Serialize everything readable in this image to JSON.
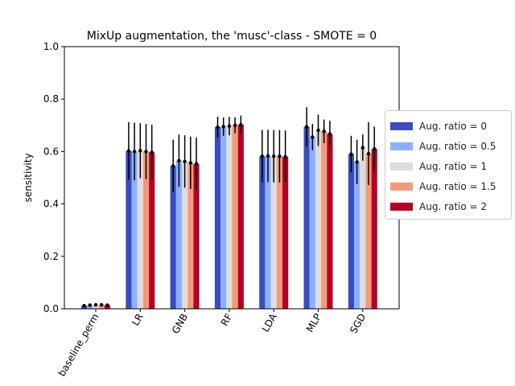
{
  "chart_data": {
    "type": "bar",
    "title": "MixUp augmentation, the 'musc'-class - SMOTE = 0",
    "xlabel": "",
    "ylabel": "sensitivity",
    "ylim": [
      0,
      1.0
    ],
    "yticks": [
      "0.0",
      "0.2",
      "0.4",
      "0.6",
      "0.8",
      "1.0"
    ],
    "categories": [
      "baseline_perm",
      "LR",
      "GNB",
      "RF",
      "LDA",
      "MLP",
      "SGD"
    ],
    "legend_position": "right",
    "grid": false,
    "series": [
      {
        "name": "Aug. ratio = 0",
        "color": "#3b4cc0",
        "values": [
          0.012,
          0.602,
          0.545,
          0.693,
          0.582,
          0.694,
          0.59
        ],
        "errors": [
          0.005,
          0.11,
          0.1,
          0.04,
          0.1,
          0.075,
          0.07
        ]
      },
      {
        "name": "Aug. ratio = 0.5",
        "color": "#8db0fe",
        "values": [
          0.014,
          0.6,
          0.565,
          0.695,
          0.583,
          0.655,
          0.56
        ],
        "errors": [
          0.005,
          0.11,
          0.1,
          0.035,
          0.1,
          0.05,
          0.085
        ]
      },
      {
        "name": "Aug. ratio = 1",
        "color": "#dddddd",
        "values": [
          0.015,
          0.603,
          0.562,
          0.697,
          0.582,
          0.681,
          0.615
        ],
        "errors": [
          0.005,
          0.105,
          0.1,
          0.035,
          0.1,
          0.06,
          0.05
        ]
      },
      {
        "name": "Aug. ratio = 1.5",
        "color": "#f49a7b",
        "values": [
          0.015,
          0.6,
          0.557,
          0.7,
          0.582,
          0.677,
          0.592
        ],
        "errors": [
          0.005,
          0.105,
          0.1,
          0.03,
          0.1,
          0.045,
          0.12
        ]
      },
      {
        "name": "Aug. ratio = 2",
        "color": "#b40426",
        "values": [
          0.014,
          0.597,
          0.553,
          0.702,
          0.58,
          0.667,
          0.61
        ],
        "errors": [
          0.005,
          0.105,
          0.1,
          0.035,
          0.1,
          0.05,
          0.085
        ]
      }
    ]
  }
}
